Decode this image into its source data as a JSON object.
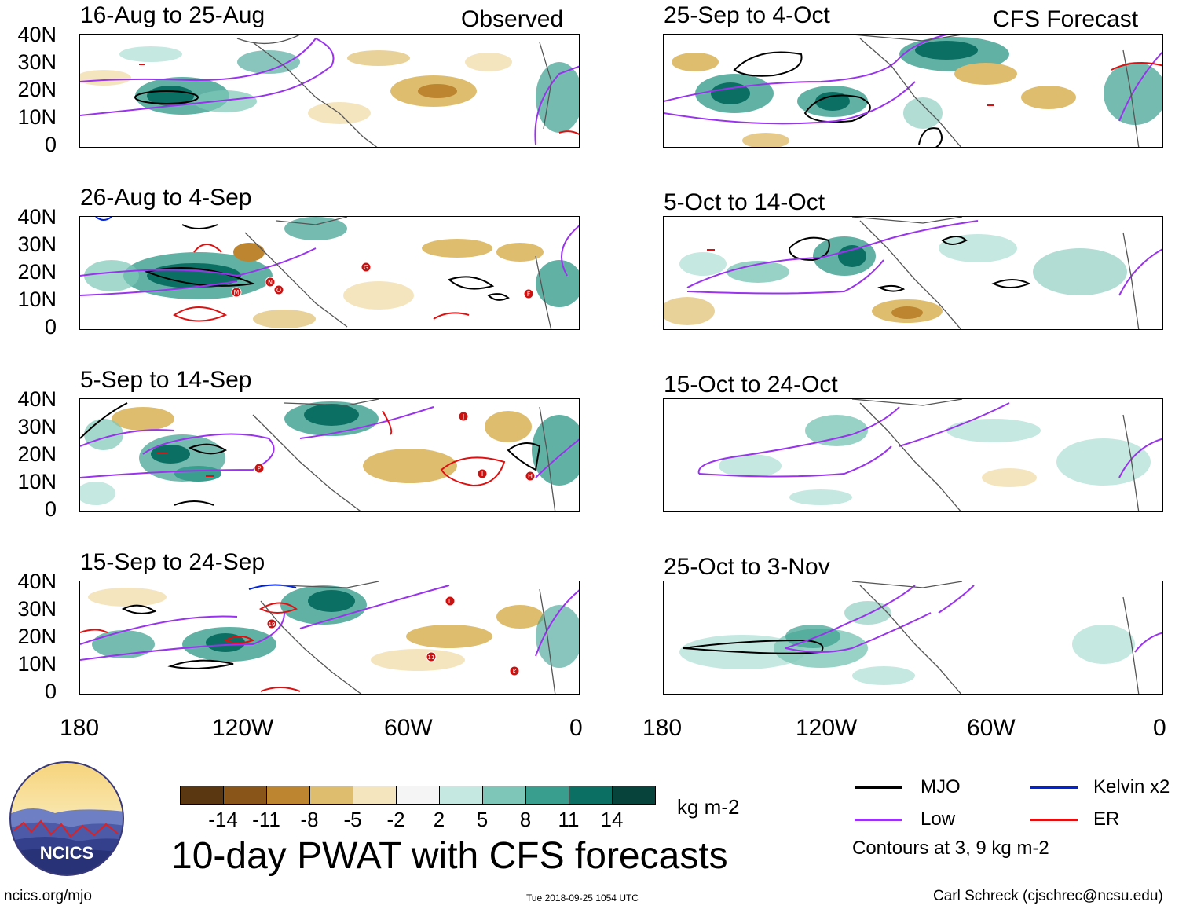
{
  "header": {
    "observed": "Observed",
    "forecast": "CFS Forecast"
  },
  "panels": {
    "left": [
      {
        "title": "16-Aug to 25-Aug",
        "storms": []
      },
      {
        "title": "26-Aug to 4-Sep",
        "storms": [
          "M",
          "N",
          "O",
          "G",
          "F"
        ]
      },
      {
        "title": "5-Sep to 14-Sep",
        "storms": [
          "P",
          "J",
          "I",
          "H"
        ]
      },
      {
        "title": "15-Sep to 24-Sep",
        "storms": [
          "19",
          "L",
          "11",
          "K"
        ]
      }
    ],
    "right": [
      {
        "title": "25-Sep to 4-Oct"
      },
      {
        "title": "5-Oct to 14-Oct"
      },
      {
        "title": "15-Oct to 24-Oct"
      },
      {
        "title": "25-Oct to 3-Nov"
      }
    ]
  },
  "axes": {
    "lat_labels": [
      "40N",
      "30N",
      "20N",
      "10N",
      "0"
    ],
    "lon_labels": [
      "180",
      "120W",
      "60W",
      "0"
    ]
  },
  "colorbar": {
    "labels": [
      "-14",
      "-11",
      "-8",
      "-5",
      "-2",
      "2",
      "5",
      "8",
      "11",
      "14"
    ],
    "colors": [
      "#5a3710",
      "#8a5519",
      "#bd852f",
      "#dfbd6f",
      "#f5e5bf",
      "#f5f5f5",
      "#c5e8e0",
      "#7ec7b8",
      "#3a9e8f",
      "#0c6f63",
      "#07433b"
    ],
    "units": "kg m-2"
  },
  "legend": {
    "items": [
      {
        "label": "MJO",
        "color": "#000000"
      },
      {
        "label": "Kelvin x2",
        "color": "#0022dd"
      },
      {
        "label": "Low",
        "color": "#9933ee"
      },
      {
        "label": "ER",
        "color": "#dd1111"
      }
    ],
    "note": "Contours at 3, 9 kg m-2"
  },
  "title": "10-day PWAT with CFS forecasts",
  "logo": {
    "text": "NCICS"
  },
  "footer": {
    "url": "ncics.org/mjo",
    "timestamp": "Tue 2018-09-25 1054 UTC",
    "credit": "Carl Schreck (cjschrec@ncsu.edu)"
  }
}
